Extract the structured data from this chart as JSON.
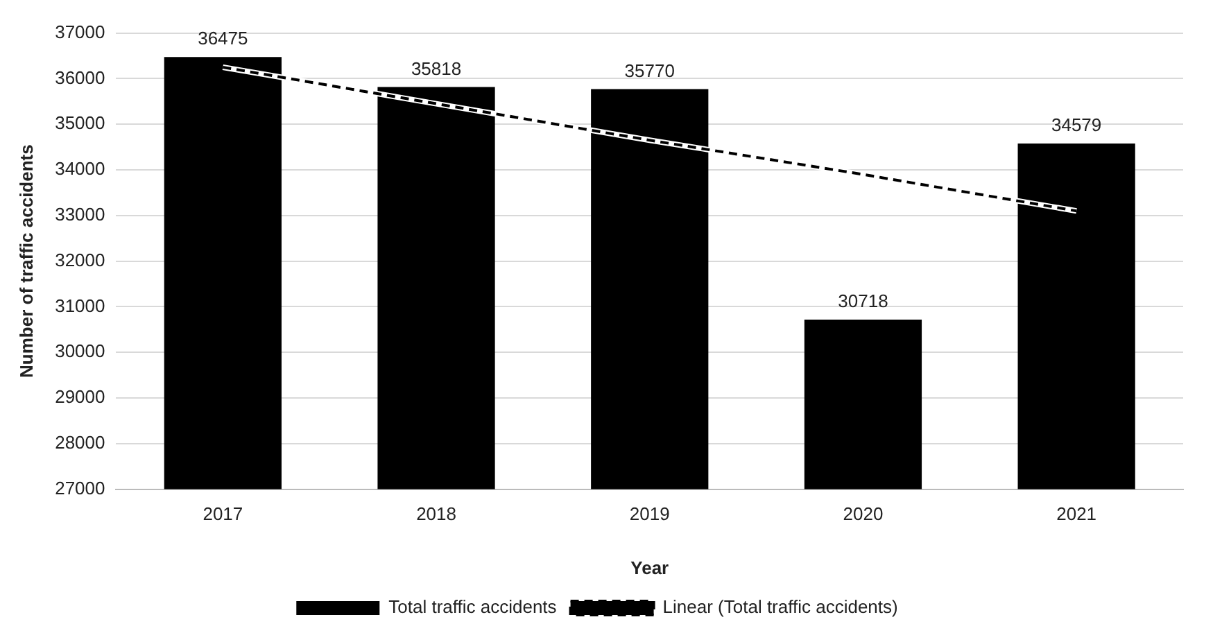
{
  "chart_data": {
    "type": "bar",
    "xlabel": "Year",
    "ylabel": "Number of traffic accidents",
    "categories": [
      "2017",
      "2018",
      "2019",
      "2020",
      "2021"
    ],
    "series": [
      {
        "name": "Total traffic accidents",
        "color": "#000000",
        "values": [
          36475,
          35818,
          35770,
          30718,
          34579
        ],
        "value_labels": [
          "36475",
          "35818",
          "35770",
          "30718",
          "34579"
        ]
      },
      {
        "name": "Linear (Total traffic accidents)",
        "type": "line",
        "color": "#000000",
        "line_style": "dashed",
        "marker": "none",
        "values": [
          36250,
          35450,
          34650,
          33900,
          33100
        ]
      }
    ],
    "ylim": [
      27000,
      37000
    ],
    "yticks": [
      27000,
      28000,
      29000,
      30000,
      31000,
      32000,
      33000,
      34000,
      35000,
      36000,
      37000
    ],
    "grid": "y",
    "legend": "bottom"
  }
}
